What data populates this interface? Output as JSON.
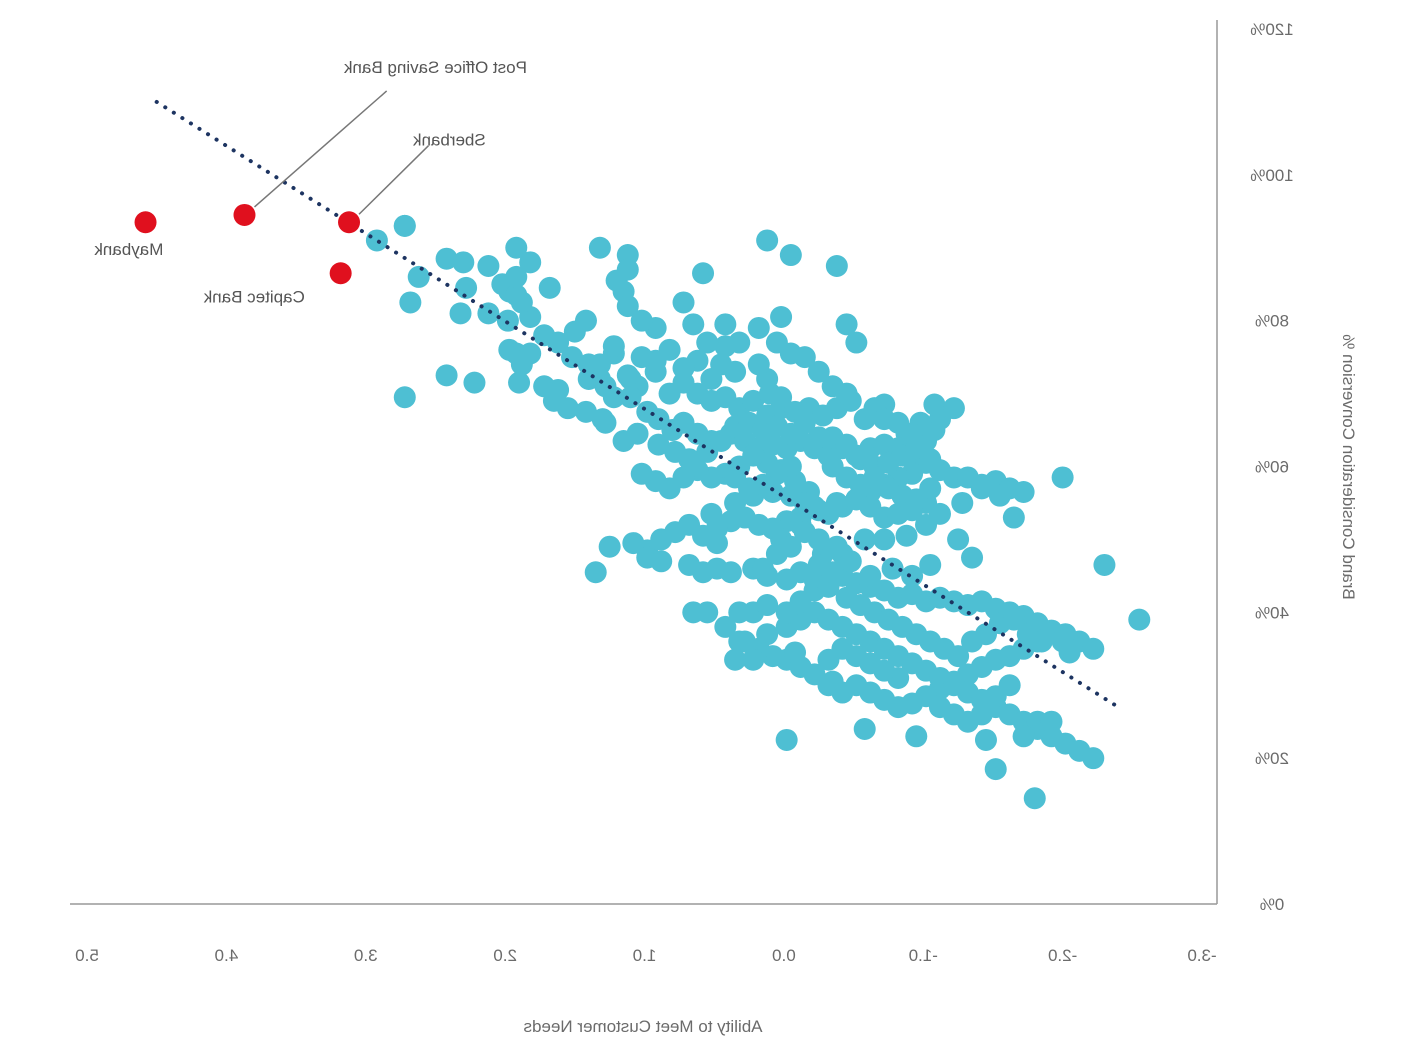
{
  "chart_data": {
    "type": "scatter",
    "mirrored": true,
    "xlabel": "Ability to Meet Customer Needs",
    "ylabel": "Brand Consideration Conversion %",
    "xlim": [
      -3.0,
      5.0
    ],
    "ylim": [
      0,
      120
    ],
    "x_ticks": [
      5.0,
      4.0,
      3.0,
      2.0,
      1.0,
      0.0,
      -1.0,
      -2.0,
      -3.0
    ],
    "x_tick_labels": [
      "5.0",
      "4.0",
      "3.0",
      "2.0",
      "1.0",
      "0.0",
      "-1.0",
      "-2.0",
      "-3.0"
    ],
    "y_ticks": [
      0,
      20,
      40,
      60,
      80,
      100,
      120
    ],
    "y_tick_labels": [
      "0%",
      "20%",
      "40%",
      "60%",
      "80%",
      "100%",
      "120%"
    ],
    "grid": false,
    "colors": {
      "benchmark": "#4ebfd3",
      "highlight": "#e0101e",
      "trendline": "#1d3461",
      "axis": "#999999",
      "leader": "#777777"
    },
    "trendline": {
      "style": "dotted",
      "x": [
        4.5,
        -2.4
      ],
      "y": [
        110,
        27
      ]
    },
    "highlighted": [
      {
        "name": "Maybank",
        "x": 4.58,
        "y": 93.5
      },
      {
        "name": "Post Office Saving Bank",
        "x": 3.87,
        "y": 94.5
      },
      {
        "name": "Sberbank",
        "x": 3.12,
        "y": 93.5
      },
      {
        "name": "Capitec Bank",
        "x": 3.18,
        "y": 86.5
      }
    ],
    "annotations": [
      {
        "label": "Post Office Saving Bank",
        "x": 2.5,
        "y": 114
      },
      {
        "label": "Sberbank",
        "x": 2.4,
        "y": 104
      },
      {
        "label": "Maybank",
        "x": 4.7,
        "y": 89
      },
      {
        "label": "Capitec Bank",
        "x": 3.8,
        "y": 82.5
      }
    ],
    "benchmark_points": [
      [
        2.72,
        93
      ],
      [
        2.92,
        91
      ],
      [
        2.62,
        86
      ],
      [
        2.68,
        82.5
      ],
      [
        2.72,
        69.5
      ],
      [
        2.42,
        88.5
      ],
      [
        2.3,
        88
      ],
      [
        2.12,
        87.5
      ],
      [
        2.28,
        84.5
      ],
      [
        2.32,
        81
      ],
      [
        2.02,
        85
      ],
      [
        2.12,
        81
      ],
      [
        1.97,
        84
      ],
      [
        1.98,
        80
      ],
      [
        1.97,
        76
      ],
      [
        1.92,
        75.5
      ],
      [
        1.82,
        75.5
      ],
      [
        1.62,
        77
      ],
      [
        1.52,
        75
      ],
      [
        1.4,
        74
      ],
      [
        1.32,
        72
      ],
      [
        1.22,
        69.5
      ],
      [
        1.1,
        72
      ],
      [
        1.05,
        71
      ],
      [
        0.92,
        73
      ],
      [
        0.82,
        70
      ],
      [
        0.72,
        71.5
      ],
      [
        0.62,
        70
      ],
      [
        0.52,
        69
      ],
      [
        0.42,
        69.5
      ],
      [
        0.32,
        68
      ],
      [
        0.22,
        69
      ],
      [
        0.12,
        67
      ],
      [
        0.02,
        68
      ],
      [
        -0.08,
        67.5
      ],
      [
        -0.18,
        68
      ],
      [
        -0.28,
        67
      ],
      [
        -0.38,
        68
      ],
      [
        -0.48,
        69
      ],
      [
        -0.58,
        66.5
      ],
      [
        -0.72,
        68.5
      ],
      [
        1.88,
        74
      ],
      [
        2.42,
        72.5
      ],
      [
        2.22,
        71.5
      ],
      [
        1.9,
        71.5
      ],
      [
        1.72,
        71
      ],
      [
        1.65,
        69
      ],
      [
        1.55,
        68
      ],
      [
        1.42,
        67.5
      ],
      [
        1.3,
        66.5
      ],
      [
        1.4,
        72
      ],
      [
        1.62,
        70.5
      ],
      [
        1.1,
        69.5
      ],
      [
        0.98,
        67.5
      ],
      [
        0.9,
        66.5
      ],
      [
        0.8,
        65
      ],
      [
        0.72,
        66
      ],
      [
        0.62,
        64.5
      ],
      [
        0.52,
        63.5
      ],
      [
        0.38,
        64.5
      ],
      [
        0.28,
        63.5
      ],
      [
        0.18,
        62.5
      ],
      [
        0.08,
        63
      ],
      [
        -0.02,
        62.5
      ],
      [
        -0.12,
        63.5
      ],
      [
        -0.22,
        62.5
      ],
      [
        -0.32,
        61.5
      ],
      [
        -0.42,
        62.5
      ],
      [
        -0.52,
        61.5
      ],
      [
        -0.62,
        62.5
      ],
      [
        -0.72,
        63
      ],
      [
        -0.82,
        62.5
      ],
      [
        -0.92,
        61
      ],
      [
        -1.02,
        60.5
      ],
      [
        -1.12,
        59.5
      ],
      [
        -1.22,
        58.5
      ],
      [
        -1.32,
        58.5
      ],
      [
        -1.42,
        57.5
      ],
      [
        -1.52,
        58
      ],
      [
        -1.62,
        57
      ],
      [
        -1.72,
        56.5
      ],
      [
        -2.0,
        58.5
      ],
      [
        -1.08,
        65
      ],
      [
        -1.12,
        66.5
      ],
      [
        -1.08,
        68.5
      ],
      [
        -0.98,
        66
      ],
      [
        -0.88,
        64.5
      ],
      [
        -1.02,
        63.5
      ],
      [
        -0.92,
        59
      ],
      [
        -0.82,
        58.5
      ],
      [
        -0.72,
        57.5
      ],
      [
        -0.62,
        56.5
      ],
      [
        -0.52,
        55.5
      ],
      [
        -0.42,
        54.5
      ],
      [
        -0.32,
        53.5
      ],
      [
        -0.22,
        54.5
      ],
      [
        -0.12,
        53
      ],
      [
        -0.02,
        52.5
      ],
      [
        0.08,
        51.5
      ],
      [
        0.18,
        52
      ],
      [
        0.28,
        53
      ],
      [
        0.38,
        52.5
      ],
      [
        0.48,
        51.5
      ],
      [
        0.58,
        50.5
      ],
      [
        0.68,
        52
      ],
      [
        0.78,
        51
      ],
      [
        0.88,
        50
      ],
      [
        0.98,
        48.5
      ],
      [
        1.08,
        49.5
      ],
      [
        1.25,
        49
      ],
      [
        1.35,
        45.5
      ],
      [
        0.98,
        47.5
      ],
      [
        0.88,
        47
      ],
      [
        0.68,
        46.5
      ],
      [
        0.58,
        45.5
      ],
      [
        0.48,
        46
      ],
      [
        0.38,
        45.5
      ],
      [
        0.22,
        46
      ],
      [
        0.12,
        45
      ],
      [
        -0.02,
        44.5
      ],
      [
        -0.12,
        45.5
      ],
      [
        -0.22,
        44.5
      ],
      [
        -0.32,
        44
      ],
      [
        -0.42,
        45
      ],
      [
        -0.52,
        44
      ],
      [
        -0.62,
        43.5
      ],
      [
        -0.72,
        43
      ],
      [
        -0.82,
        42
      ],
      [
        -0.92,
        42.5
      ],
      [
        -1.02,
        41.5
      ],
      [
        -1.12,
        42
      ],
      [
        -1.22,
        41.5
      ],
      [
        -1.32,
        41
      ],
      [
        -1.42,
        41.5
      ],
      [
        -1.52,
        40.5
      ],
      [
        -1.62,
        40
      ],
      [
        -1.72,
        39.5
      ],
      [
        -1.82,
        38.5
      ],
      [
        -1.92,
        37.5
      ],
      [
        -2.02,
        37
      ],
      [
        -2.12,
        36
      ],
      [
        -2.22,
        35
      ],
      [
        -2.3,
        46.5
      ],
      [
        -2.55,
        39
      ],
      [
        -2.05,
        34.5
      ],
      [
        -2.0,
        36
      ],
      [
        -1.82,
        36
      ],
      [
        -1.72,
        35
      ],
      [
        -1.62,
        34
      ],
      [
        -1.52,
        33.5
      ],
      [
        -1.42,
        32.5
      ],
      [
        -1.32,
        31.5
      ],
      [
        -1.22,
        30.5
      ],
      [
        -1.12,
        29.5
      ],
      [
        -1.02,
        28.5
      ],
      [
        -0.92,
        27.5
      ],
      [
        -0.82,
        27
      ],
      [
        -0.72,
        28
      ],
      [
        -0.62,
        29
      ],
      [
        -0.52,
        30
      ],
      [
        -0.42,
        29
      ],
      [
        -0.32,
        30
      ],
      [
        -0.22,
        31.5
      ],
      [
        -0.12,
        32.5
      ],
      [
        -0.02,
        33.5
      ],
      [
        0.08,
        34
      ],
      [
        0.18,
        35
      ],
      [
        0.28,
        36
      ],
      [
        0.12,
        37
      ],
      [
        -0.02,
        38
      ],
      [
        -0.12,
        39
      ],
      [
        -0.22,
        40
      ],
      [
        -0.32,
        39
      ],
      [
        -0.42,
        38
      ],
      [
        -0.52,
        37
      ],
      [
        -0.62,
        36
      ],
      [
        -0.72,
        35
      ],
      [
        -0.82,
        34
      ],
      [
        -0.92,
        33
      ],
      [
        -1.02,
        32
      ],
      [
        -1.12,
        31
      ],
      [
        -1.22,
        30
      ],
      [
        -1.32,
        29
      ],
      [
        -1.42,
        28
      ],
      [
        -1.52,
        27
      ],
      [
        -1.62,
        26
      ],
      [
        -1.72,
        25
      ],
      [
        -1.82,
        24
      ],
      [
        -1.92,
        23
      ],
      [
        -2.02,
        22
      ],
      [
        -2.12,
        21
      ],
      [
        -2.22,
        20
      ],
      [
        -1.45,
        22.5
      ],
      [
        -1.82,
        25
      ],
      [
        -1.52,
        18.5
      ],
      [
        -1.8,
        14.5
      ],
      [
        -1.92,
        25
      ],
      [
        -1.72,
        23
      ],
      [
        -0.95,
        23
      ],
      [
        -0.58,
        24
      ],
      [
        -0.35,
        30.5
      ],
      [
        -0.02,
        22.5
      ],
      [
        0.22,
        33.5
      ],
      [
        0.35,
        33.5
      ],
      [
        0.32,
        36
      ],
      [
        0.22,
        40
      ],
      [
        0.12,
        41
      ],
      [
        -0.08,
        34.5
      ],
      [
        -0.02,
        40
      ],
      [
        -0.12,
        41.5
      ],
      [
        -0.22,
        43
      ],
      [
        -0.32,
        43.5
      ],
      [
        0.55,
        40
      ],
      [
        0.65,
        40
      ],
      [
        0.42,
        38
      ],
      [
        0.32,
        40
      ],
      [
        0.15,
        46
      ],
      [
        0.02,
        50
      ],
      [
        -0.12,
        52
      ],
      [
        -0.28,
        48
      ],
      [
        -0.42,
        48
      ],
      [
        -0.58,
        50
      ],
      [
        -0.72,
        50
      ],
      [
        -0.88,
        50.5
      ],
      [
        -1.02,
        52
      ],
      [
        -1.12,
        53.5
      ],
      [
        -1.28,
        55
      ],
      [
        -1.42,
        57
      ],
      [
        -1.55,
        56
      ],
      [
        -1.65,
        53
      ],
      [
        -1.25,
        50
      ],
      [
        -1.35,
        47.5
      ],
      [
        -1.05,
        46.5
      ],
      [
        -0.92,
        45
      ],
      [
        -0.78,
        46
      ],
      [
        -0.62,
        45
      ],
      [
        -0.48,
        47
      ],
      [
        -0.38,
        49
      ],
      [
        -0.25,
        50
      ],
      [
        -0.18,
        56.5
      ],
      [
        -0.08,
        58
      ],
      [
        0.02,
        59.5
      ],
      [
        0.12,
        60.5
      ],
      [
        0.22,
        61.5
      ],
      [
        0.32,
        60
      ],
      [
        0.42,
        59
      ],
      [
        0.52,
        58.5
      ],
      [
        0.62,
        59.5
      ],
      [
        0.72,
        58.5
      ],
      [
        0.82,
        57
      ],
      [
        0.92,
        58
      ],
      [
        1.02,
        59
      ],
      [
        0.52,
        53.5
      ],
      [
        0.48,
        49.5
      ],
      [
        0.35,
        55
      ],
      [
        0.22,
        56
      ],
      [
        0.08,
        56.5
      ],
      [
        -0.05,
        56
      ],
      [
        -0.15,
        55
      ],
      [
        -0.25,
        54
      ],
      [
        -0.38,
        55
      ],
      [
        -0.52,
        55.5
      ],
      [
        -0.62,
        54.5
      ],
      [
        -0.72,
        53
      ],
      [
        -0.82,
        53.5
      ],
      [
        -0.92,
        54
      ],
      [
        -1.02,
        55
      ],
      [
        0.1,
        70
      ],
      [
        0.02,
        69.5
      ],
      [
        0.12,
        72
      ],
      [
        0.18,
        74
      ],
      [
        0.35,
        73
      ],
      [
        0.45,
        74
      ],
      [
        0.52,
        72
      ],
      [
        0.62,
        74.5
      ],
      [
        0.72,
        73.5
      ],
      [
        0.82,
        76
      ],
      [
        0.92,
        74.5
      ],
      [
        1.02,
        75
      ],
      [
        1.12,
        72.5
      ],
      [
        1.22,
        75.5
      ],
      [
        1.32,
        74
      ],
      [
        0.42,
        76.5
      ],
      [
        0.32,
        77
      ],
      [
        0.18,
        79
      ],
      [
        0.02,
        80.5
      ],
      [
        -0.15,
        75
      ],
      [
        -0.25,
        73
      ],
      [
        -0.35,
        71
      ],
      [
        -0.45,
        70
      ],
      [
        -0.65,
        68
      ],
      [
        -0.72,
        66.5
      ],
      [
        -0.82,
        66
      ],
      [
        -0.92,
        64.5
      ],
      [
        -1.22,
        68
      ],
      [
        -0.05,
        75.5
      ],
      [
        0.05,
        77
      ],
      [
        0.55,
        77
      ],
      [
        0.65,
        79.5
      ],
      [
        0.92,
        79
      ],
      [
        1.22,
        76.5
      ],
      [
        1.42,
        80
      ],
      [
        1.72,
        78
      ],
      [
        1.82,
        80.5
      ],
      [
        1.92,
        83.5
      ],
      [
        1.92,
        86
      ],
      [
        1.82,
        88
      ],
      [
        1.92,
        90
      ],
      [
        1.32,
        90
      ],
      [
        1.12,
        89
      ],
      [
        1.12,
        87
      ],
      [
        1.2,
        85.5
      ],
      [
        1.15,
        84
      ],
      [
        1.12,
        82
      ],
      [
        1.02,
        80
      ],
      [
        0.58,
        86.5
      ],
      [
        0.72,
        82.5
      ],
      [
        0.42,
        79.5
      ],
      [
        0.12,
        91
      ],
      [
        -0.05,
        89
      ],
      [
        -0.38,
        87.5
      ],
      [
        -0.45,
        79.5
      ],
      [
        -0.52,
        77
      ],
      [
        1.88,
        82.5
      ],
      [
        1.68,
        84.5
      ],
      [
        1.5,
        78.5
      ],
      [
        1.28,
        71
      ],
      [
        2.72,
        93
      ],
      [
        1.28,
        66
      ],
      [
        1.15,
        63.5
      ],
      [
        1.05,
        64.5
      ],
      [
        0.9,
        63
      ],
      [
        0.78,
        62
      ],
      [
        0.68,
        61
      ],
      [
        0.55,
        62
      ],
      [
        0.45,
        63.5
      ],
      [
        0.35,
        65.5
      ],
      [
        0.25,
        66
      ],
      [
        0.15,
        65
      ],
      [
        0.05,
        65.5
      ],
      [
        -0.05,
        64.5
      ],
      [
        -0.15,
        66
      ],
      [
        -0.25,
        64
      ],
      [
        -0.35,
        64
      ],
      [
        -0.45,
        63
      ],
      [
        -0.55,
        61
      ],
      [
        -0.65,
        60
      ],
      [
        -0.75,
        60.5
      ],
      [
        -0.85,
        61.5
      ],
      [
        -0.95,
        62.5
      ],
      [
        -1.05,
        61
      ],
      [
        -0.05,
        60
      ],
      [
        0.05,
        59
      ],
      [
        0.15,
        57.5
      ],
      [
        0.25,
        57
      ],
      [
        0.35,
        58.5
      ],
      [
        -0.35,
        60
      ],
      [
        -0.45,
        58.5
      ],
      [
        -0.55,
        57.5
      ],
      [
        -0.65,
        58.5
      ],
      [
        -0.75,
        57
      ],
      [
        -0.85,
        56
      ],
      [
        -0.95,
        55.5
      ],
      [
        -1.05,
        57
      ],
      [
        -0.15,
        51
      ],
      [
        -0.05,
        49
      ],
      [
        0.05,
        48
      ],
      [
        -0.25,
        46.5
      ],
      [
        -0.35,
        45.5
      ],
      [
        -0.45,
        42
      ],
      [
        -0.55,
        41
      ],
      [
        -0.65,
        40
      ],
      [
        -0.75,
        39
      ],
      [
        -0.85,
        38
      ],
      [
        -0.95,
        37
      ],
      [
        -1.05,
        36
      ],
      [
        -1.15,
        35
      ],
      [
        -1.25,
        34
      ],
      [
        -1.35,
        36
      ],
      [
        -1.45,
        37
      ],
      [
        -1.55,
        38.5
      ],
      [
        -1.65,
        39
      ],
      [
        -1.75,
        37
      ],
      [
        -1.85,
        36
      ],
      [
        -1.62,
        30
      ],
      [
        -1.52,
        28.5
      ],
      [
        -1.42,
        26
      ],
      [
        -1.32,
        25
      ],
      [
        -1.22,
        26
      ],
      [
        -1.12,
        27
      ],
      [
        -0.82,
        31
      ],
      [
        -0.72,
        32
      ],
      [
        -0.62,
        33
      ],
      [
        -0.52,
        34
      ],
      [
        -0.42,
        35
      ],
      [
        -0.32,
        33.5
      ]
    ]
  }
}
